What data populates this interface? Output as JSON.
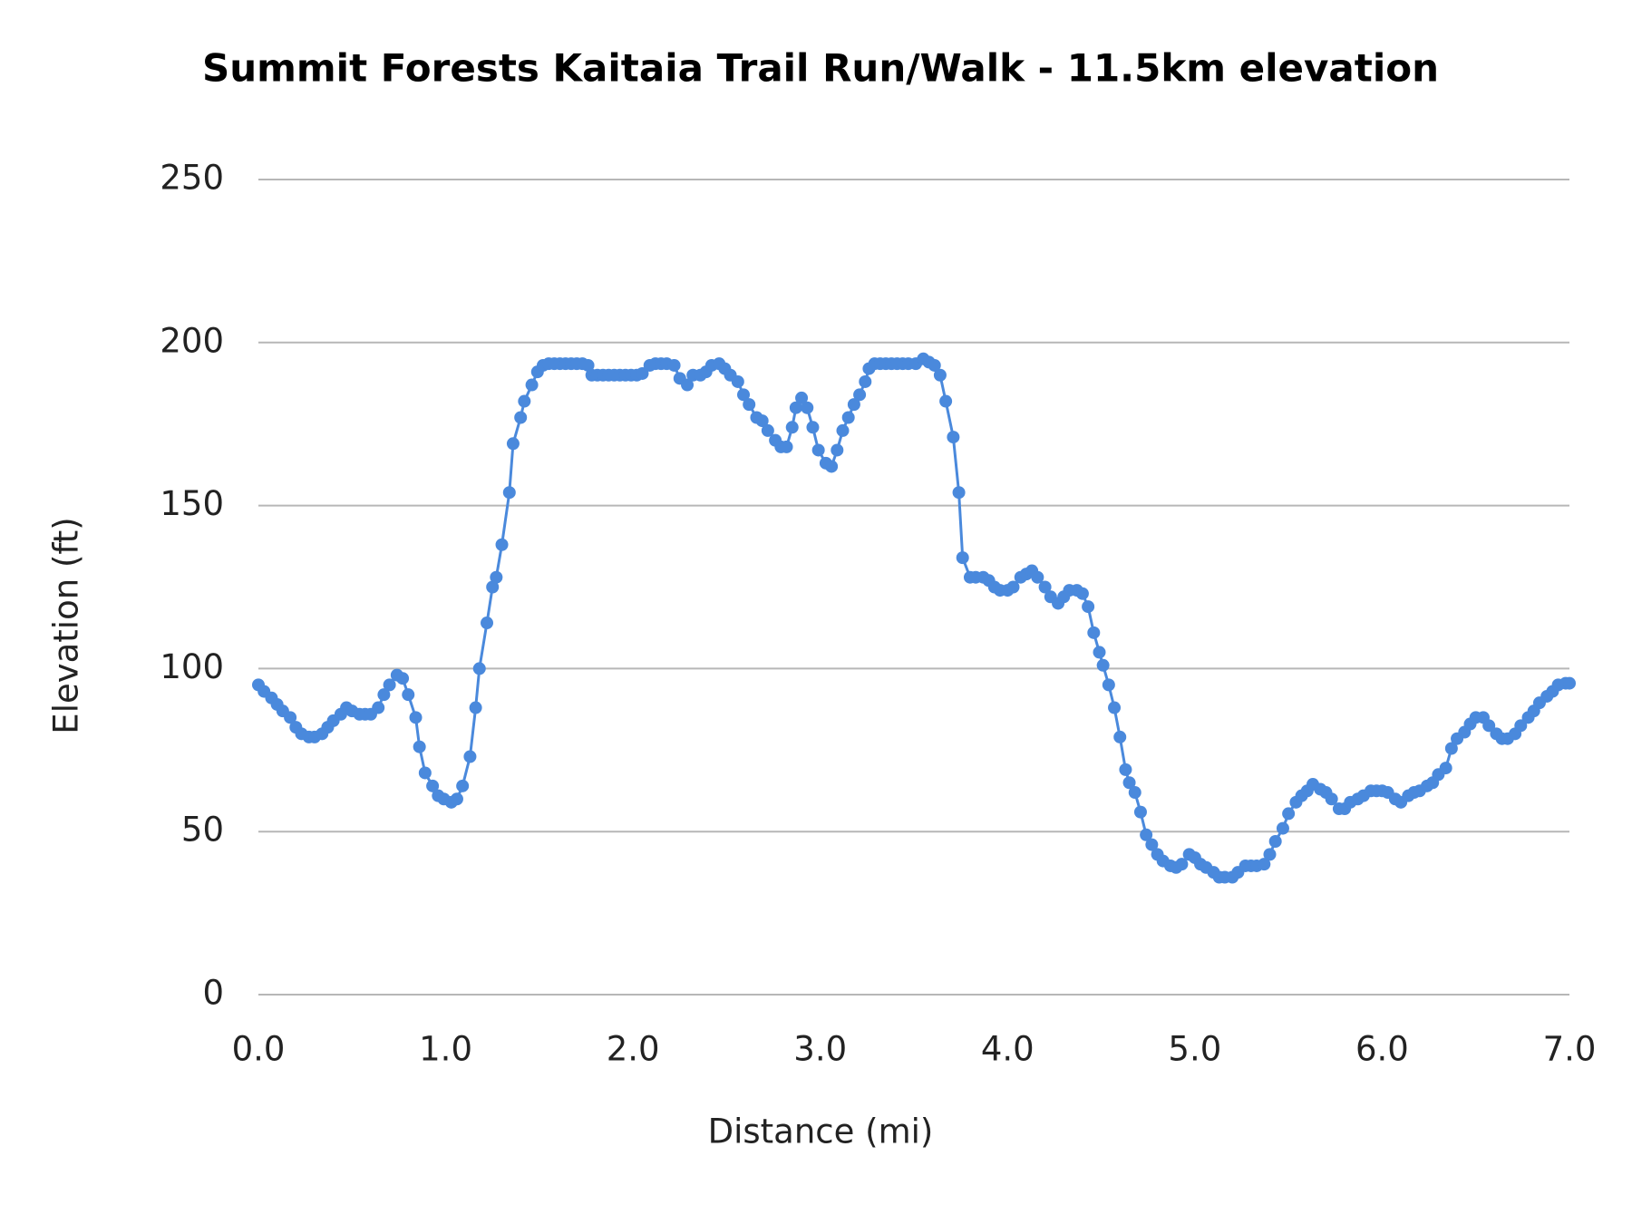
{
  "chart_data": {
    "type": "line",
    "title": "Summit Forests Kaitaia Trail Run/Walk - 11.5km elevation",
    "x_label": "Distance (mi)",
    "y_label": "Elevation (ft)",
    "color": "#4a89dc",
    "grid": true,
    "markers": true,
    "xlim": [
      0,
      7
    ],
    "ylim": [
      0,
      250
    ],
    "xticks": [
      {
        "value": 0,
        "label": "0.0"
      },
      {
        "value": 1,
        "label": "1.0"
      },
      {
        "value": 2,
        "label": "2.0"
      },
      {
        "value": 3,
        "label": "3.0"
      },
      {
        "value": 4,
        "label": "4.0"
      },
      {
        "value": 5,
        "label": "5.0"
      },
      {
        "value": 6,
        "label": "6.0"
      },
      {
        "value": 7,
        "label": "7.0"
      }
    ],
    "yticks": [
      0,
      50,
      100,
      150,
      200,
      250
    ],
    "x": [
      0.0,
      0.03,
      0.07,
      0.1,
      0.13,
      0.17,
      0.2,
      0.23,
      0.27,
      0.3,
      0.34,
      0.37,
      0.4,
      0.44,
      0.47,
      0.5,
      0.54,
      0.57,
      0.6,
      0.64,
      0.67,
      0.7,
      0.74,
      0.77,
      0.8,
      0.84,
      0.86,
      0.89,
      0.93,
      0.96,
      0.99,
      1.03,
      1.06,
      1.09,
      1.13,
      1.16,
      1.18,
      1.22,
      1.25,
      1.27,
      1.3,
      1.34,
      1.36,
      1.4,
      1.42,
      1.46,
      1.49,
      1.52,
      1.55,
      1.58,
      1.61,
      1.64,
      1.67,
      1.7,
      1.73,
      1.76,
      1.78,
      1.81,
      1.84,
      1.87,
      1.9,
      1.93,
      1.96,
      1.99,
      2.02,
      2.05,
      2.09,
      2.12,
      2.15,
      2.18,
      2.22,
      2.25,
      2.29,
      2.32,
      2.36,
      2.39,
      2.42,
      2.46,
      2.49,
      2.52,
      2.56,
      2.59,
      2.62,
      2.66,
      2.69,
      2.72,
      2.76,
      2.79,
      2.82,
      2.85,
      2.87,
      2.9,
      2.93,
      2.96,
      2.99,
      3.03,
      3.06,
      3.09,
      3.12,
      3.15,
      3.18,
      3.21,
      3.24,
      3.26,
      3.29,
      3.32,
      3.35,
      3.38,
      3.41,
      3.44,
      3.47,
      3.51,
      3.55,
      3.58,
      3.61,
      3.64,
      3.67,
      3.71,
      3.74,
      3.76,
      3.8,
      3.83,
      3.87,
      3.9,
      3.93,
      3.96,
      4.0,
      4.03,
      4.07,
      4.1,
      4.13,
      4.16,
      4.2,
      4.23,
      4.27,
      4.3,
      4.33,
      4.37,
      4.4,
      4.43,
      4.46,
      4.49,
      4.51,
      4.54,
      4.57,
      4.6,
      4.63,
      4.65,
      4.68,
      4.71,
      4.74,
      4.77,
      4.8,
      4.83,
      4.87,
      4.9,
      4.93,
      4.97,
      5.0,
      5.03,
      5.06,
      5.1,
      5.13,
      5.16,
      5.2,
      5.23,
      5.27,
      5.3,
      5.33,
      5.37,
      5.4,
      5.43,
      5.47,
      5.5,
      5.54,
      5.57,
      5.6,
      5.63,
      5.67,
      5.7,
      5.73,
      5.77,
      5.8,
      5.83,
      5.87,
      5.9,
      5.94,
      5.97,
      6.0,
      6.03,
      6.07,
      6.1,
      6.14,
      6.17,
      6.2,
      6.24,
      6.27,
      6.3,
      6.34,
      6.37,
      6.4,
      6.44,
      6.47,
      6.5,
      6.54,
      6.57,
      6.61,
      6.64,
      6.67,
      6.71,
      6.74,
      6.78,
      6.81,
      6.84,
      6.88,
      6.91,
      6.94,
      6.98,
      7.0
    ],
    "values": [
      95,
      93,
      91,
      89,
      87,
      85,
      82,
      80,
      79,
      79,
      80,
      82,
      84,
      86,
      88,
      87,
      86,
      86,
      86,
      88,
      92,
      95,
      98,
      97,
      92,
      85,
      76,
      68,
      64,
      61,
      60,
      59,
      60,
      64,
      73,
      88,
      100,
      114,
      125,
      128,
      138,
      154,
      169,
      177,
      182,
      187,
      191,
      193,
      193.5,
      193.5,
      193.5,
      193.5,
      193.5,
      193.5,
      193.5,
      193,
      190,
      190,
      190,
      190,
      190,
      190,
      190,
      190,
      190,
      190.5,
      193,
      193.5,
      193.5,
      193.5,
      193,
      189,
      187,
      190,
      190,
      191,
      193,
      193.5,
      192,
      190,
      188,
      184,
      181,
      177,
      176,
      173,
      170,
      168,
      168,
      174,
      180,
      183,
      180,
      174,
      167,
      163,
      162,
      167,
      173,
      177,
      181,
      184,
      188,
      192,
      193.5,
      193.5,
      193.5,
      193.5,
      193.5,
      193.5,
      193.5,
      193.5,
      195,
      194,
      193,
      190,
      182,
      171,
      154,
      134,
      128,
      128,
      128,
      127,
      125,
      124,
      124,
      125,
      128,
      129,
      130,
      128,
      125,
      122,
      120,
      122,
      124,
      124,
      123,
      119,
      111,
      105,
      101,
      95,
      88,
      79,
      69,
      65,
      62,
      56,
      49,
      46,
      43,
      41,
      39.5,
      39,
      40,
      43,
      42,
      40,
      39,
      37.5,
      36,
      36,
      36,
      37.5,
      39.5,
      39.5,
      39.5,
      40,
      43,
      47,
      51,
      55.5,
      59,
      61,
      62.5,
      64.5,
      63,
      62,
      60,
      57,
      57,
      59,
      60,
      61,
      62.5,
      62.5,
      62.5,
      62,
      60,
      59,
      61,
      62,
      62.5,
      64,
      65,
      67.5,
      69.5,
      75.5,
      78.5,
      80.5,
      83,
      85,
      85,
      82.5,
      80,
      78.5,
      78.5,
      80,
      82.5,
      85,
      87,
      89.5,
      91.5,
      93,
      95,
      95.5,
      95.5
    ]
  }
}
